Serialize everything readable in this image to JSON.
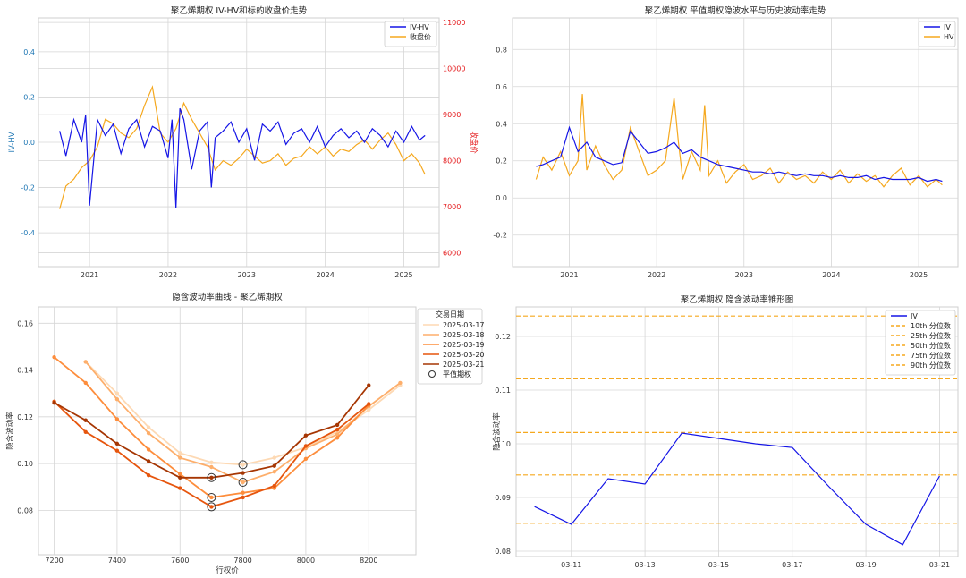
{
  "colors": {
    "iv": "#1515e6",
    "hv": "#f5a81e",
    "close": "#f5a81e",
    "red_axis": "#e41a1c",
    "blue_axis": "#1f77b4",
    "grid": "#d6d6d6"
  },
  "chart_data": [
    {
      "id": "c1",
      "type": "line",
      "title": "聚乙烯期权 IV-HV和标的收盘价走势",
      "ylabel": "IV-HV",
      "y2label": "收盘价",
      "xticks": [
        "2021",
        "2022",
        "2023",
        "2024",
        "2025"
      ],
      "yticks": [
        "-0.4",
        "-0.2",
        "0.0",
        "0.2",
        "0.4"
      ],
      "y2ticks": [
        "6000",
        "7000",
        "8000",
        "9000",
        "10000",
        "11000"
      ],
      "ylim": [
        -0.55,
        0.55
      ],
      "y2lim": [
        5700,
        11100
      ],
      "legend": [
        "IV-HV",
        "收盘价"
      ],
      "series": [
        {
          "name": "IV-HV",
          "axis": "left",
          "x": [
            2020.62,
            2020.7,
            2020.8,
            2020.9,
            2020.95,
            2021.0,
            2021.1,
            2021.2,
            2021.3,
            2021.4,
            2021.5,
            2021.6,
            2021.7,
            2021.8,
            2021.9,
            2022.0,
            2022.05,
            2022.1,
            2022.15,
            2022.2,
            2022.3,
            2022.4,
            2022.5,
            2022.55,
            2022.6,
            2022.7,
            2022.8,
            2022.9,
            2023.0,
            2023.1,
            2023.2,
            2023.3,
            2023.4,
            2023.5,
            2023.6,
            2023.7,
            2023.8,
            2023.9,
            2024.0,
            2024.1,
            2024.2,
            2024.3,
            2024.4,
            2024.5,
            2024.6,
            2024.7,
            2024.8,
            2024.9,
            2025.0,
            2025.1,
            2025.2,
            2025.27
          ],
          "y": [
            0.05,
            -0.06,
            0.1,
            0.0,
            0.12,
            -0.28,
            0.1,
            0.03,
            0.08,
            -0.05,
            0.06,
            0.1,
            -0.02,
            0.07,
            0.05,
            -0.07,
            0.1,
            -0.29,
            0.15,
            0.1,
            -0.12,
            0.05,
            0.09,
            -0.2,
            0.02,
            0.05,
            0.09,
            0.0,
            0.06,
            -0.08,
            0.08,
            0.05,
            0.09,
            -0.01,
            0.04,
            0.06,
            0.0,
            0.07,
            -0.02,
            0.03,
            0.06,
            0.02,
            0.05,
            0.0,
            0.06,
            0.03,
            -0.02,
            0.05,
            0.0,
            0.07,
            0.01,
            0.03
          ]
        },
        {
          "name": "收盘价",
          "axis": "right",
          "x": [
            2020.62,
            2020.7,
            2020.8,
            2020.9,
            2021.0,
            2021.1,
            2021.2,
            2021.3,
            2021.4,
            2021.5,
            2021.6,
            2021.7,
            2021.8,
            2021.9,
            2022.0,
            2022.1,
            2022.2,
            2022.3,
            2022.4,
            2022.5,
            2022.6,
            2022.7,
            2022.8,
            2022.9,
            2023.0,
            2023.1,
            2023.2,
            2023.3,
            2023.4,
            2023.5,
            2023.6,
            2023.7,
            2023.8,
            2023.9,
            2024.0,
            2024.1,
            2024.2,
            2024.3,
            2024.4,
            2024.5,
            2024.6,
            2024.7,
            2024.8,
            2024.9,
            2025.0,
            2025.1,
            2025.2,
            2025.27
          ],
          "y": [
            6950,
            7450,
            7600,
            7850,
            8000,
            8300,
            8900,
            8800,
            8600,
            8500,
            8700,
            9200,
            9600,
            8600,
            8400,
            8700,
            9250,
            8900,
            8600,
            8300,
            7800,
            8000,
            7900,
            8050,
            8250,
            8100,
            7950,
            8000,
            8150,
            7900,
            8050,
            8100,
            8300,
            8150,
            8300,
            8100,
            8250,
            8200,
            8350,
            8450,
            8250,
            8450,
            8600,
            8350,
            8000,
            8150,
            7950,
            7700
          ]
        }
      ]
    },
    {
      "id": "c2",
      "type": "line",
      "title": "聚乙烯期权 平值期权隐波水平与历史波动率走势",
      "xticks": [
        "2021",
        "2022",
        "2023",
        "2024",
        "2025"
      ],
      "yticks": [
        "-0.2",
        "0.0",
        "0.2",
        "0.4",
        "0.6",
        "0.8"
      ],
      "ylim": [
        -0.37,
        0.97
      ],
      "legend": [
        "IV",
        "HV"
      ],
      "series": [
        {
          "name": "IV",
          "x": [
            2020.62,
            2020.7,
            2020.8,
            2020.9,
            2021.0,
            2021.1,
            2021.2,
            2021.3,
            2021.4,
            2021.5,
            2021.6,
            2021.7,
            2021.8,
            2021.9,
            2022.0,
            2022.1,
            2022.2,
            2022.3,
            2022.4,
            2022.5,
            2022.6,
            2022.7,
            2022.8,
            2022.9,
            2023.0,
            2023.1,
            2023.2,
            2023.3,
            2023.4,
            2023.5,
            2023.6,
            2023.7,
            2023.8,
            2023.9,
            2024.0,
            2024.1,
            2024.2,
            2024.3,
            2024.4,
            2024.5,
            2024.6,
            2024.7,
            2024.8,
            2024.9,
            2025.0,
            2025.1,
            2025.2,
            2025.27
          ],
          "y": [
            0.17,
            0.18,
            0.2,
            0.22,
            0.38,
            0.25,
            0.3,
            0.22,
            0.2,
            0.18,
            0.19,
            0.36,
            0.3,
            0.24,
            0.25,
            0.27,
            0.3,
            0.24,
            0.26,
            0.22,
            0.2,
            0.18,
            0.17,
            0.16,
            0.15,
            0.14,
            0.14,
            0.13,
            0.14,
            0.13,
            0.12,
            0.13,
            0.12,
            0.12,
            0.11,
            0.12,
            0.11,
            0.11,
            0.12,
            0.1,
            0.11,
            0.1,
            0.1,
            0.1,
            0.11,
            0.09,
            0.1,
            0.09
          ]
        },
        {
          "name": "HV",
          "x": [
            2020.62,
            2020.7,
            2020.8,
            2020.9,
            2021.0,
            2021.1,
            2021.15,
            2021.2,
            2021.3,
            2021.4,
            2021.5,
            2021.6,
            2021.7,
            2021.8,
            2021.9,
            2022.0,
            2022.1,
            2022.2,
            2022.25,
            2022.3,
            2022.4,
            2022.5,
            2022.55,
            2022.6,
            2022.7,
            2022.8,
            2022.9,
            2023.0,
            2023.1,
            2023.2,
            2023.3,
            2023.4,
            2023.5,
            2023.6,
            2023.7,
            2023.8,
            2023.9,
            2024.0,
            2024.1,
            2024.2,
            2024.3,
            2024.4,
            2024.5,
            2024.6,
            2024.7,
            2024.8,
            2024.9,
            2025.0,
            2025.1,
            2025.2,
            2025.27
          ],
          "y": [
            0.1,
            0.22,
            0.15,
            0.25,
            0.12,
            0.2,
            0.56,
            0.15,
            0.28,
            0.18,
            0.1,
            0.15,
            0.38,
            0.25,
            0.12,
            0.15,
            0.2,
            0.54,
            0.3,
            0.1,
            0.25,
            0.15,
            0.5,
            0.12,
            0.2,
            0.08,
            0.14,
            0.18,
            0.1,
            0.12,
            0.16,
            0.08,
            0.14,
            0.1,
            0.12,
            0.08,
            0.14,
            0.1,
            0.15,
            0.08,
            0.13,
            0.09,
            0.12,
            0.06,
            0.12,
            0.16,
            0.07,
            0.12,
            0.06,
            0.1,
            0.07
          ]
        }
      ]
    },
    {
      "id": "c3",
      "type": "line",
      "title": "隐含波动率曲线 - 聚乙烯期权",
      "xlabel": "行权价",
      "ylabel": "隐含波动率",
      "xticks": [
        "7200",
        "7400",
        "7600",
        "7800",
        "8000",
        "8200"
      ],
      "yticks": [
        "0.08",
        "0.10",
        "0.12",
        "0.14",
        "0.16"
      ],
      "xlim": [
        7150,
        8350
      ],
      "ylim": [
        0.061,
        0.167
      ],
      "legend_title": "交易日期",
      "legend_marker_label": "平值期权",
      "series": [
        {
          "name": "2025-03-17",
          "x": [
            7300,
            7400,
            7500,
            7600,
            7700,
            7800,
            7900,
            8000,
            8100,
            8200,
            8300
          ],
          "y": [
            0.1435,
            0.13,
            0.1155,
            0.1045,
            0.1005,
            0.0995,
            0.1025,
            0.107,
            0.1135,
            0.123,
            0.1335
          ]
        },
        {
          "name": "2025-03-18",
          "x": [
            7300,
            7400,
            7500,
            7600,
            7700,
            7800,
            7900,
            8000,
            8100,
            8200,
            8300
          ],
          "y": [
            0.1435,
            0.1275,
            0.113,
            0.1025,
            0.0985,
            0.092,
            0.0965,
            0.1065,
            0.1125,
            0.1245,
            0.1345
          ]
        },
        {
          "name": "2025-03-19",
          "x": [
            7200,
            7300,
            7400,
            7500,
            7600,
            7700,
            7800,
            7900,
            8000,
            8100,
            8200
          ],
          "y": [
            0.1455,
            0.1345,
            0.119,
            0.106,
            0.0955,
            0.0855,
            0.0875,
            0.0895,
            0.102,
            0.111,
            0.125
          ]
        },
        {
          "name": "2025-03-20",
          "x": [
            7200,
            7300,
            7400,
            7500,
            7600,
            7700,
            7800,
            7900,
            8000,
            8100,
            8200
          ],
          "y": [
            0.1265,
            0.1135,
            0.1055,
            0.095,
            0.0895,
            0.0815,
            0.0855,
            0.0905,
            0.1075,
            0.1145,
            0.1255
          ]
        },
        {
          "name": "2025-03-21",
          "x": [
            7200,
            7300,
            7400,
            7500,
            7600,
            7700,
            7800,
            7900,
            8000,
            8100,
            8200
          ],
          "y": [
            0.126,
            0.1185,
            0.1085,
            0.101,
            0.094,
            0.094,
            0.096,
            0.099,
            0.112,
            0.1165,
            0.1335
          ]
        }
      ],
      "atm": [
        {
          "x": 7700,
          "y": 0.0855
        },
        {
          "x": 7700,
          "y": 0.0815
        },
        {
          "x": 7700,
          "y": 0.094
        },
        {
          "x": 7800,
          "y": 0.0995
        },
        {
          "x": 7800,
          "y": 0.092
        }
      ],
      "palette": [
        "#fdd9b4",
        "#fdae6b",
        "#fd8d3c",
        "#e6550d",
        "#a63603"
      ]
    },
    {
      "id": "c4",
      "type": "line",
      "title": "聚乙烯期权 隐含波动率锥形图",
      "ylabel": "隐含波动率",
      "xticks": [
        "03-11",
        "03-13",
        "03-15",
        "03-17",
        "03-19",
        "03-21"
      ],
      "yticks": [
        "0.08",
        "0.09",
        "0.10",
        "0.11",
        "0.12"
      ],
      "ylim": [
        0.079,
        0.1255
      ],
      "series": [
        {
          "name": "IV",
          "x": [
            0,
            1,
            2,
            3,
            4,
            5,
            6,
            7,
            8,
            9,
            10,
            11
          ],
          "y": [
            0.0883,
            0.085,
            0.0935,
            0.0925,
            0.102,
            0.101,
            0.1,
            0.0993,
            0.092,
            0.085,
            0.0812,
            0.094
          ]
        }
      ],
      "percentiles": [
        {
          "name": "10th 分位数",
          "value": 0.0852
        },
        {
          "name": "25th 分位数",
          "value": 0.0942
        },
        {
          "name": "50th 分位数",
          "value": 0.1021
        },
        {
          "name": "75th 分位数",
          "value": 0.1121
        },
        {
          "name": "90th 分位数",
          "value": 0.1238
        }
      ]
    }
  ]
}
